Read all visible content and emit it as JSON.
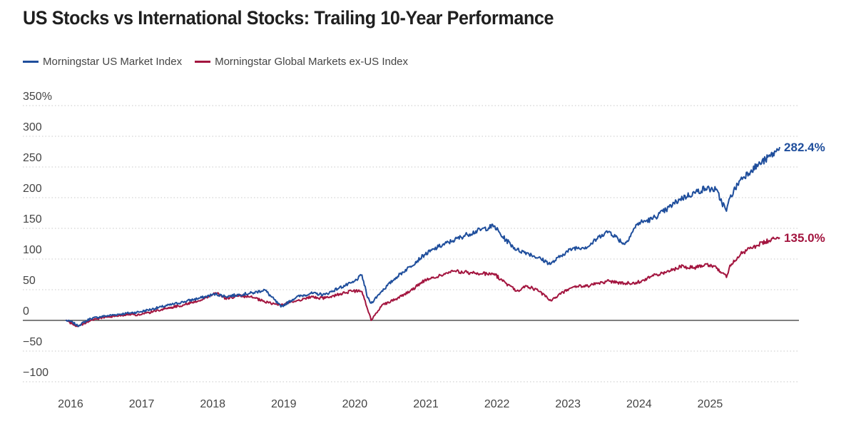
{
  "chart_data": {
    "type": "line",
    "title": "US Stocks vs International Stocks: Trailing 10-Year Performance",
    "xlabel": "",
    "ylabel": "",
    "ylim": [
      -100,
      350
    ],
    "y_ticks": [
      350,
      300,
      250,
      200,
      150,
      100,
      50,
      0,
      -50,
      -100
    ],
    "y_tick_labels": [
      "350%",
      "300",
      "250",
      "200",
      "150",
      "100",
      "50",
      "0",
      "−50",
      "−100"
    ],
    "x_ticks": [
      2016,
      2017,
      2018,
      2019,
      2020,
      2021,
      2022,
      2023,
      2024,
      2025
    ],
    "x_tick_labels": [
      "2016",
      "2017",
      "2018",
      "2019",
      "2020",
      "2021",
      "2022",
      "2023",
      "2024",
      "2025"
    ],
    "xlim": [
      2015.95,
      2026.15
    ],
    "grid": "horizontal-dotted",
    "legend": "top-left",
    "series": [
      {
        "name": "Morningstar US Market Index",
        "color": "#1f4e9c",
        "end_label": "282.4%",
        "x": [
          2015.95,
          2016.05,
          2016.12,
          2016.3,
          2016.5,
          2016.7,
          2016.85,
          2017.0,
          2017.3,
          2017.6,
          2017.9,
          2018.06,
          2018.2,
          2018.4,
          2018.6,
          2018.75,
          2018.98,
          2019.2,
          2019.4,
          2019.6,
          2019.8,
          2020.0,
          2020.12,
          2020.2,
          2020.25,
          2020.4,
          2020.6,
          2020.8,
          2021.0,
          2021.2,
          2021.4,
          2021.6,
          2021.8,
          2021.98,
          2022.1,
          2022.3,
          2022.45,
          2022.6,
          2022.78,
          2022.95,
          2023.1,
          2023.3,
          2023.5,
          2023.6,
          2023.82,
          2024.0,
          2024.2,
          2024.4,
          2024.6,
          2024.8,
          2024.95,
          2025.1,
          2025.25,
          2025.3,
          2025.45,
          2025.6,
          2025.8,
          2025.95,
          2026.0
        ],
        "values": [
          0,
          -3,
          -9,
          3,
          7,
          10,
          12,
          14,
          22,
          30,
          38,
          43,
          39,
          42,
          45,
          50,
          22,
          38,
          44,
          42,
          53,
          62,
          74,
          37,
          28,
          48,
          70,
          88,
          107,
          120,
          130,
          140,
          148,
          154,
          136,
          115,
          110,
          102,
          92,
          108,
          118,
          120,
          140,
          145,
          124,
          158,
          165,
          180,
          198,
          208,
          215,
          213,
          178,
          200,
          230,
          245,
          262,
          275,
          282.4
        ]
      },
      {
        "name": "Morningstar Global Markets ex-US Index",
        "color": "#a3153f",
        "end_label": "135.0%",
        "x": [
          2015.95,
          2016.05,
          2016.12,
          2016.3,
          2016.5,
          2016.7,
          2016.85,
          2017.0,
          2017.3,
          2017.6,
          2017.9,
          2018.06,
          2018.2,
          2018.4,
          2018.6,
          2018.75,
          2018.98,
          2019.2,
          2019.4,
          2019.6,
          2019.8,
          2020.0,
          2020.12,
          2020.2,
          2020.25,
          2020.4,
          2020.6,
          2020.8,
          2021.0,
          2021.2,
          2021.4,
          2021.6,
          2021.8,
          2021.98,
          2022.1,
          2022.3,
          2022.45,
          2022.6,
          2022.78,
          2022.95,
          2023.1,
          2023.3,
          2023.5,
          2023.6,
          2023.82,
          2024.0,
          2024.2,
          2024.4,
          2024.6,
          2024.8,
          2024.95,
          2025.1,
          2025.25,
          2025.3,
          2025.45,
          2025.6,
          2025.8,
          2025.95,
          2026.0
        ],
        "values": [
          0,
          -6,
          -10,
          0,
          5,
          8,
          10,
          9,
          18,
          25,
          35,
          45,
          36,
          40,
          37,
          30,
          25,
          32,
          38,
          36,
          43,
          48,
          47,
          18,
          0,
          25,
          35,
          48,
          65,
          72,
          80,
          78,
          76,
          76,
          64,
          48,
          56,
          48,
          32,
          46,
          55,
          56,
          62,
          64,
          60,
          62,
          72,
          78,
          88,
          86,
          92,
          88,
          70,
          90,
          108,
          118,
          128,
          133,
          135.0
        ]
      }
    ]
  }
}
